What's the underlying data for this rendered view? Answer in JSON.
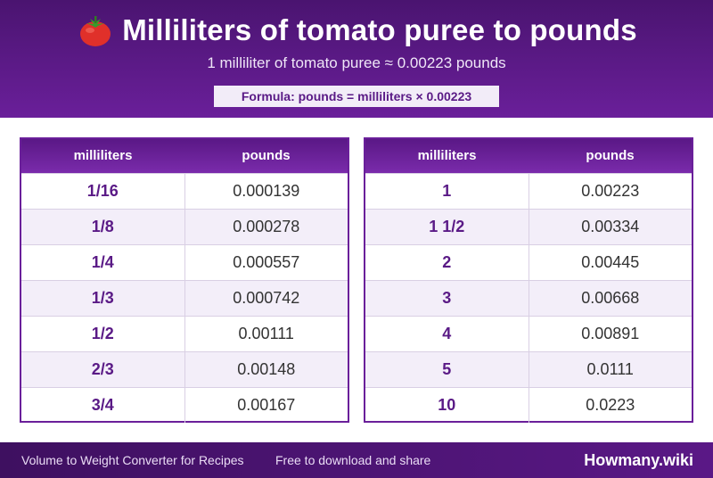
{
  "header": {
    "title": "Milliliters of tomato puree to pounds",
    "subtitle": "1 milliliter of tomato puree ≈ 0.00223 pounds",
    "formula": "Formula: pounds = milliliters × 0.00223",
    "icon": "tomato-icon"
  },
  "table_left": {
    "col1": "milliliters",
    "col2": "pounds",
    "rows": [
      {
        "ml": "1/16",
        "lb": "0.000139"
      },
      {
        "ml": "1/8",
        "lb": "0.000278"
      },
      {
        "ml": "1/4",
        "lb": "0.000557"
      },
      {
        "ml": "1/3",
        "lb": "0.000742"
      },
      {
        "ml": "1/2",
        "lb": "0.00111"
      },
      {
        "ml": "2/3",
        "lb": "0.00148"
      },
      {
        "ml": "3/4",
        "lb": "0.00167"
      }
    ]
  },
  "table_right": {
    "col1": "milliliters",
    "col2": "pounds",
    "rows": [
      {
        "ml": "1",
        "lb": "0.00223"
      },
      {
        "ml": "1 1/2",
        "lb": "0.00334"
      },
      {
        "ml": "2",
        "lb": "0.00445"
      },
      {
        "ml": "3",
        "lb": "0.00668"
      },
      {
        "ml": "4",
        "lb": "0.00891"
      },
      {
        "ml": "5",
        "lb": "0.0111"
      },
      {
        "ml": "10",
        "lb": "0.0223"
      }
    ]
  },
  "footer": {
    "left_text": "Volume to Weight Converter for Recipes",
    "middle_text": "Free to download and share",
    "brand": "Howmany.wiki"
  },
  "colors": {
    "accent": "#6a1f9a",
    "header_dark": "#4a1470",
    "row_alt": "#f3eef9"
  }
}
